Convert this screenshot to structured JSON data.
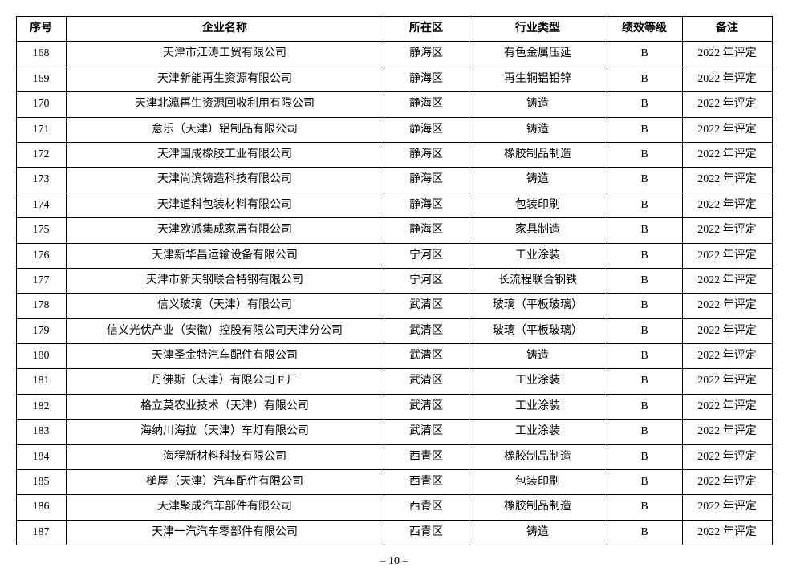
{
  "table": {
    "columns": [
      {
        "key": "seq",
        "label": "序号",
        "class": "col-seq"
      },
      {
        "key": "name",
        "label": "企业名称",
        "class": "col-name"
      },
      {
        "key": "area",
        "label": "所在区",
        "class": "col-area"
      },
      {
        "key": "type",
        "label": "行业类型",
        "class": "col-type"
      },
      {
        "key": "grade",
        "label": "绩效等级",
        "class": "col-grade"
      },
      {
        "key": "note",
        "label": "备注",
        "class": "col-note"
      }
    ],
    "rows": [
      {
        "seq": "168",
        "name": "天津市江涛工贸有限公司",
        "area": "静海区",
        "type": "有色金属压延",
        "grade": "B",
        "note": "2022 年评定"
      },
      {
        "seq": "169",
        "name": "天津新能再生资源有限公司",
        "area": "静海区",
        "type": "再生铜铝铅锌",
        "grade": "B",
        "note": "2022 年评定"
      },
      {
        "seq": "170",
        "name": "天津北瀛再生资源回收利用有限公司",
        "area": "静海区",
        "type": "铸造",
        "grade": "B",
        "note": "2022 年评定"
      },
      {
        "seq": "171",
        "name": "意乐（天津）铝制品有限公司",
        "area": "静海区",
        "type": "铸造",
        "grade": "B",
        "note": "2022 年评定"
      },
      {
        "seq": "172",
        "name": "天津国成橡胶工业有限公司",
        "area": "静海区",
        "type": "橡胶制品制造",
        "grade": "B",
        "note": "2022 年评定"
      },
      {
        "seq": "173",
        "name": "天津尚滨铸造科技有限公司",
        "area": "静海区",
        "type": "铸造",
        "grade": "B",
        "note": "2022 年评定"
      },
      {
        "seq": "174",
        "name": "天津道科包装材料有限公司",
        "area": "静海区",
        "type": "包装印刷",
        "grade": "B",
        "note": "2022 年评定"
      },
      {
        "seq": "175",
        "name": "天津欧派集成家居有限公司",
        "area": "静海区",
        "type": "家具制造",
        "grade": "B",
        "note": "2022 年评定"
      },
      {
        "seq": "176",
        "name": "天津新华昌运输设备有限公司",
        "area": "宁河区",
        "type": "工业涂装",
        "grade": "B",
        "note": "2022 年评定"
      },
      {
        "seq": "177",
        "name": "天津市新天钢联合特钢有限公司",
        "area": "宁河区",
        "type": "长流程联合钢铁",
        "grade": "B",
        "note": "2022 年评定"
      },
      {
        "seq": "178",
        "name": "信义玻璃（天津）有限公司",
        "area": "武清区",
        "type": "玻璃（平板玻璃）",
        "grade": "B",
        "note": "2022 年评定"
      },
      {
        "seq": "179",
        "name": "信义光伏产业（安徽）控股有限公司天津分公司",
        "area": "武清区",
        "type": "玻璃（平板玻璃）",
        "grade": "B",
        "note": "2022 年评定"
      },
      {
        "seq": "180",
        "name": "天津圣金特汽车配件有限公司",
        "area": "武清区",
        "type": "铸造",
        "grade": "B",
        "note": "2022 年评定"
      },
      {
        "seq": "181",
        "name": "丹佛斯（天津）有限公司 F 厂",
        "area": "武清区",
        "type": "工业涂装",
        "grade": "B",
        "note": "2022 年评定"
      },
      {
        "seq": "182",
        "name": "格立莫农业技术（天津）有限公司",
        "area": "武清区",
        "type": "工业涂装",
        "grade": "B",
        "note": "2022 年评定"
      },
      {
        "seq": "183",
        "name": "海纳川海拉（天津）车灯有限公司",
        "area": "武清区",
        "type": "工业涂装",
        "grade": "B",
        "note": "2022 年评定"
      },
      {
        "seq": "184",
        "name": "海程新材料科技有限公司",
        "area": "西青区",
        "type": "橡胶制品制造",
        "grade": "B",
        "note": "2022 年评定"
      },
      {
        "seq": "185",
        "name": "槌屋（天津）汽车配件有限公司",
        "area": "西青区",
        "type": "包装印刷",
        "grade": "B",
        "note": "2022 年评定"
      },
      {
        "seq": "186",
        "name": "天津聚成汽车部件有限公司",
        "area": "西青区",
        "type": "橡胶制品制造",
        "grade": "B",
        "note": "2022 年评定"
      },
      {
        "seq": "187",
        "name": "天津一汽汽车零部件有限公司",
        "area": "西青区",
        "type": "铸造",
        "grade": "B",
        "note": "2022 年评定"
      }
    ]
  },
  "page_number": "– 10 –"
}
